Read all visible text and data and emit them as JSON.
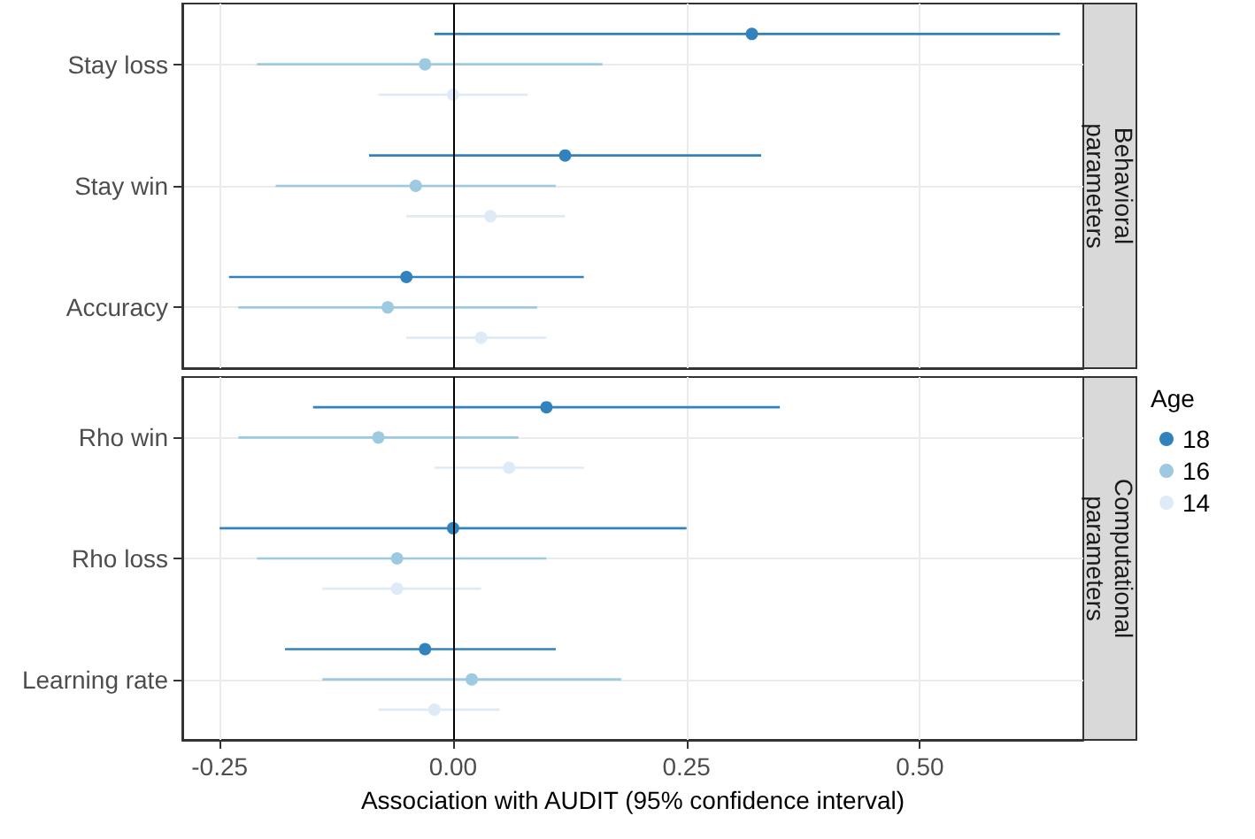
{
  "chart_data": [
    {
      "type": "scatter",
      "title": "Behavioral parameters",
      "orientation": "horizontal",
      "categories": [
        "Stay loss",
        "Stay win",
        "Accuracy"
      ],
      "series": [
        {
          "color": "#3182bd",
          "values": [
            0.32,
            0.12,
            -0.05
          ],
          "errors": [
            [
              -0.02,
              0.65
            ],
            [
              -0.09,
              0.33
            ],
            [
              -0.24,
              0.14
            ]
          ]
        },
        {
          "color": "#9ecae1",
          "values": [
            -0.03,
            -0.04,
            -0.07
          ],
          "errors": [
            [
              -0.21,
              0.16
            ],
            [
              -0.19,
              0.11
            ],
            [
              -0.23,
              0.09
            ]
          ]
        },
        {
          "color": "#deebf7",
          "values": [
            0.0,
            0.04,
            0.03
          ],
          "errors": [
            [
              -0.08,
              0.08
            ],
            [
              -0.05,
              0.12
            ],
            [
              -0.05,
              0.1
            ]
          ]
        }
      ],
      "xlim": [
        -0.29,
        0.675
      ],
      "xticks": [
        -0.25,
        0,
        0.25,
        0.5
      ],
      "ref_lines": [
        {
          "axis": "x",
          "value": 0,
          "color": "#000000"
        }
      ],
      "grid": true,
      "marker": "circle",
      "legend": false,
      "tick_labels": "y"
    },
    {
      "type": "scatter",
      "title": "Computational parameters",
      "orientation": "horizontal",
      "categories": [
        "Rho win",
        "Rho loss",
        "Learning rate"
      ],
      "series": [
        {
          "name": "18",
          "color": "#3182bd",
          "values": [
            0.1,
            0.0,
            -0.03
          ],
          "errors": [
            [
              -0.15,
              0.35
            ],
            [
              -0.25,
              0.25
            ],
            [
              -0.18,
              0.11
            ]
          ]
        },
        {
          "name": "16",
          "color": "#9ecae1",
          "values": [
            -0.08,
            -0.06,
            0.02
          ],
          "errors": [
            [
              -0.23,
              0.07
            ],
            [
              -0.21,
              0.1
            ],
            [
              -0.14,
              0.18
            ]
          ]
        },
        {
          "name": "14",
          "color": "#deebf7",
          "values": [
            0.06,
            -0.06,
            -0.02
          ],
          "errors": [
            [
              -0.02,
              0.14
            ],
            [
              -0.14,
              0.03
            ],
            [
              -0.08,
              0.05
            ]
          ]
        }
      ],
      "xlim": [
        -0.29,
        0.675
      ],
      "xticks": [
        {
          "value": -0.25,
          "label": "-0.25"
        },
        {
          "value": 0,
          "label": "0.00"
        },
        {
          "value": 0.25,
          "label": "0.25"
        },
        {
          "value": 0.5,
          "label": "0.50"
        }
      ],
      "xlabel": "Association with AUDIT (95% confidence interval)",
      "legend_title": "Age",
      "ref_lines": [
        {
          "axis": "x",
          "value": 0,
          "color": "#000000"
        }
      ],
      "grid": true,
      "marker": "circle",
      "legend": "right"
    }
  ]
}
